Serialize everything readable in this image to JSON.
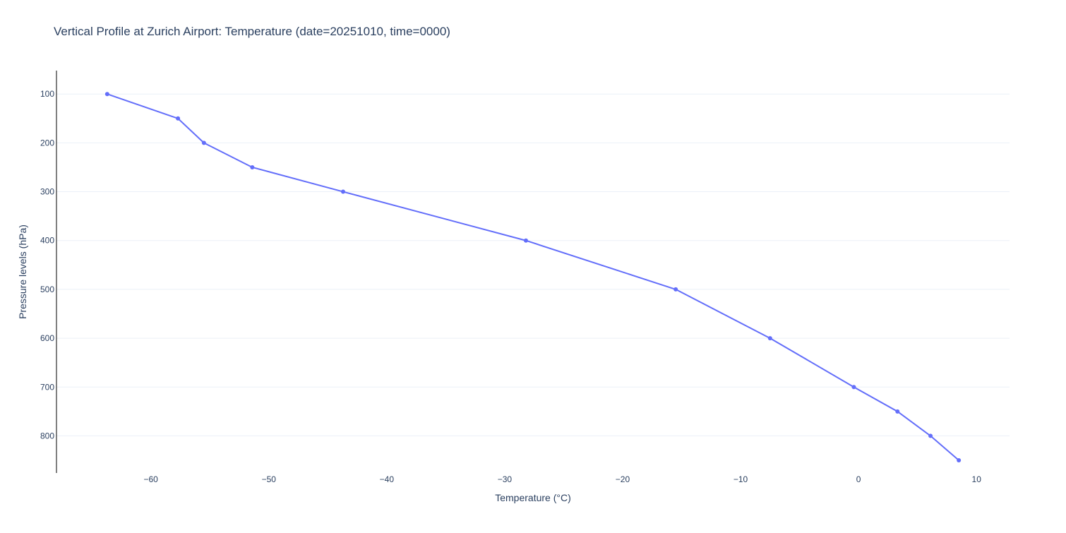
{
  "chart_data": {
    "type": "line",
    "title": "Vertical Profile at Zurich Airport: Temperature (date=20251010, time=0000)",
    "xlabel": "Temperature (°C)",
    "ylabel": "Pressure levels (hPa)",
    "xlim": [
      -68,
      12.8
    ],
    "ylim": [
      876,
      52
    ],
    "y_reversed": true,
    "x_ticks": [
      -60,
      -50,
      -40,
      -30,
      -20,
      -10,
      0,
      10
    ],
    "x_tick_labels": [
      "−60",
      "−50",
      "−40",
      "−30",
      "−20",
      "−10",
      "0",
      "10"
    ],
    "y_ticks": [
      100,
      200,
      300,
      400,
      500,
      600,
      700,
      800
    ],
    "y_tick_labels": [
      "100",
      "200",
      "300",
      "400",
      "500",
      "600",
      "700",
      "800"
    ],
    "grid": true,
    "series": [
      {
        "color": "#636efa",
        "points": [
          {
            "x": -63.7,
            "y": 100
          },
          {
            "x": -57.7,
            "y": 150
          },
          {
            "x": -55.5,
            "y": 200
          },
          {
            "x": -51.4,
            "y": 250
          },
          {
            "x": -43.7,
            "y": 300
          },
          {
            "x": -28.2,
            "y": 400
          },
          {
            "x": -15.5,
            "y": 500
          },
          {
            "x": -7.5,
            "y": 600
          },
          {
            "x": -0.4,
            "y": 700
          },
          {
            "x": 3.3,
            "y": 750
          },
          {
            "x": 6.1,
            "y": 800
          },
          {
            "x": 8.5,
            "y": 850
          }
        ]
      }
    ]
  }
}
